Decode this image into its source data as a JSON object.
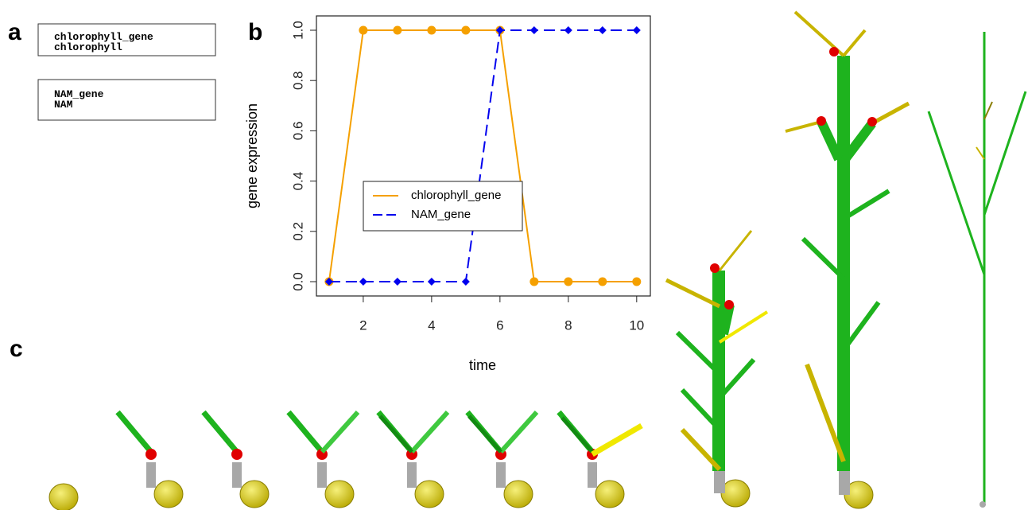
{
  "panel_labels": [
    "a",
    "b",
    "c"
  ],
  "boxes": [
    [
      "chlorophyll_gene",
      "chlorophyll"
    ],
    [
      "NAM_gene",
      "NAM"
    ]
  ],
  "chart_data": {
    "type": "line",
    "xlabel": "time",
    "ylabel": "gene expression",
    "x": [
      1,
      2,
      3,
      4,
      5,
      6,
      7,
      8,
      9,
      10
    ],
    "series": [
      {
        "name": "chlorophyll_gene",
        "color": "#f5a000",
        "values": [
          0,
          1,
          1,
          1,
          1,
          1,
          0,
          0,
          0,
          0
        ],
        "marker": "circle",
        "dash": false
      },
      {
        "name": "NAM_gene",
        "color": "#0000ee",
        "values": [
          0,
          0,
          0,
          0,
          0,
          1,
          1,
          1,
          1,
          1
        ],
        "marker": "diamond",
        "dash": true
      }
    ],
    "xlim": [
      0.63,
      10.4
    ],
    "ylim": [
      -0.057,
      1.057
    ],
    "xticks": [
      2,
      4,
      6,
      8,
      10
    ],
    "yticks": [
      {
        "value": 0,
        "label": "0.0"
      },
      {
        "value": 0.2,
        "label": "0.2"
      },
      {
        "value": 0.4,
        "label": "0.4"
      },
      {
        "value": 0.6,
        "label": "0.6"
      },
      {
        "value": 0.8,
        "label": "0.8"
      },
      {
        "value": 1,
        "label": "1.0"
      }
    ],
    "legend": "center-left"
  }
}
